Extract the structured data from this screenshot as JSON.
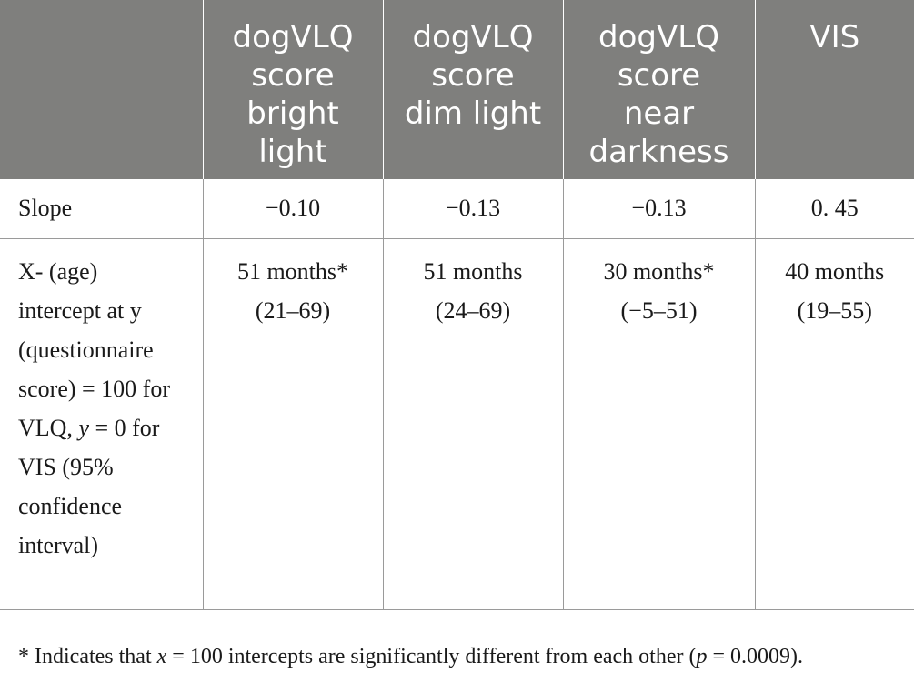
{
  "table": {
    "header": [
      "",
      [
        "dogVLQ",
        "score",
        "bright",
        "light"
      ],
      [
        "dogVLQ",
        "score",
        "dim light"
      ],
      [
        "dogVLQ",
        "score",
        "near",
        "darkness"
      ],
      [
        "VIS"
      ]
    ],
    "rows": {
      "slope": {
        "label": "Slope",
        "values": [
          "−0.10",
          "−0.13",
          "−0.13",
          "0. 45"
        ]
      },
      "intercept": {
        "label_lines": [
          "X- (age)",
          "intercept at y",
          "(questionnaire",
          "score) = 100 for",
          "VLQ,",
          "y",
          " = 0 for",
          "VIS (95%",
          "confidence",
          "interval)"
        ],
        "values": [
          [
            "51 months*",
            "(21–69)"
          ],
          [
            "51 months",
            "(24–69)"
          ],
          [
            "30 months*",
            "(−5–51)"
          ],
          [
            "40 months",
            "(19–55)"
          ]
        ]
      }
    }
  },
  "footnote": {
    "pre": "* Indicates that ",
    "x": "x",
    "mid": " = 100 intercepts are significantly different from each other (",
    "p": "p",
    "post": " = 0.0009)."
  }
}
